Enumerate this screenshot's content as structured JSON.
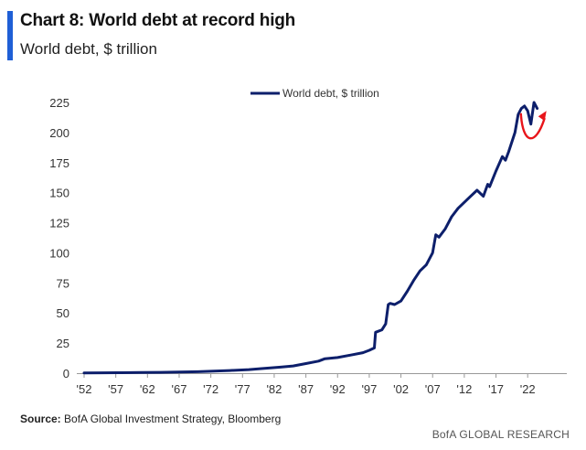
{
  "title": "Chart 8: World debt at record high",
  "subtitle": "World debt, $ trillion",
  "source_label": "Source:",
  "source_text": "BofA Global Investment Strategy, Bloomberg",
  "brand": "BofA GLOBAL RESEARCH",
  "colors": {
    "series": "#0d1f6b",
    "arrow": "#e8151b",
    "accent": "#1f5fd6",
    "axis": "#999999"
  },
  "chart_data": {
    "type": "line",
    "title": "Chart 8: World debt at record high",
    "ylabel": "World debt, $ trillion",
    "xlabel": "",
    "ylim": [
      0,
      225
    ],
    "xlim": [
      1952,
      2025
    ],
    "yticks": [
      0,
      25,
      50,
      75,
      100,
      125,
      150,
      175,
      200,
      225
    ],
    "xticks": [
      1952,
      1957,
      1962,
      1967,
      1972,
      1977,
      1982,
      1987,
      1992,
      1997,
      2002,
      2007,
      2012,
      2017,
      2022
    ],
    "xtick_labels": [
      "'52",
      "'57",
      "'62",
      "'67",
      "'72",
      "'77",
      "'82",
      "'87",
      "'92",
      "'97",
      "'02",
      "'07",
      "'12",
      "'17",
      "'22"
    ],
    "legend": "World debt, $ trillion",
    "legend_position": "top-center",
    "grid": false,
    "annotation": "red rebound arrow near 2022",
    "series": [
      {
        "name": "World debt, $ trillion",
        "x": [
          1952,
          1955,
          1958,
          1961,
          1964,
          1967,
          1970,
          1972,
          1975,
          1978,
          1980,
          1983,
          1985,
          1987,
          1989,
          1990,
          1992,
          1994,
          1996,
          1997,
          1997.8,
          1998,
          1999,
          1999.6,
          2000,
          2000.3,
          2001,
          2002,
          2003,
          2004,
          2005,
          2006,
          2007,
          2007.5,
          2008,
          2009,
          2010,
          2011,
          2012,
          2013,
          2014,
          2015,
          2015.7,
          2016,
          2017,
          2018,
          2018.5,
          2019,
          2020,
          2020.5,
          2021,
          2021.5,
          2022,
          2022.5,
          2023,
          2023.5
        ],
        "values": [
          0.2,
          0.3,
          0.4,
          0.5,
          0.7,
          0.9,
          1.2,
          1.6,
          2.2,
          3,
          3.8,
          5,
          6,
          8,
          10,
          12,
          13,
          15,
          17,
          19,
          21,
          34,
          36,
          41,
          57,
          58,
          57,
          60,
          68,
          77,
          85,
          90,
          100,
          115,
          113,
          120,
          130,
          137,
          142,
          147,
          152,
          147,
          157,
          155,
          168,
          180,
          177,
          184,
          200,
          215,
          220,
          222,
          218,
          207,
          225,
          220
        ]
      }
    ]
  }
}
